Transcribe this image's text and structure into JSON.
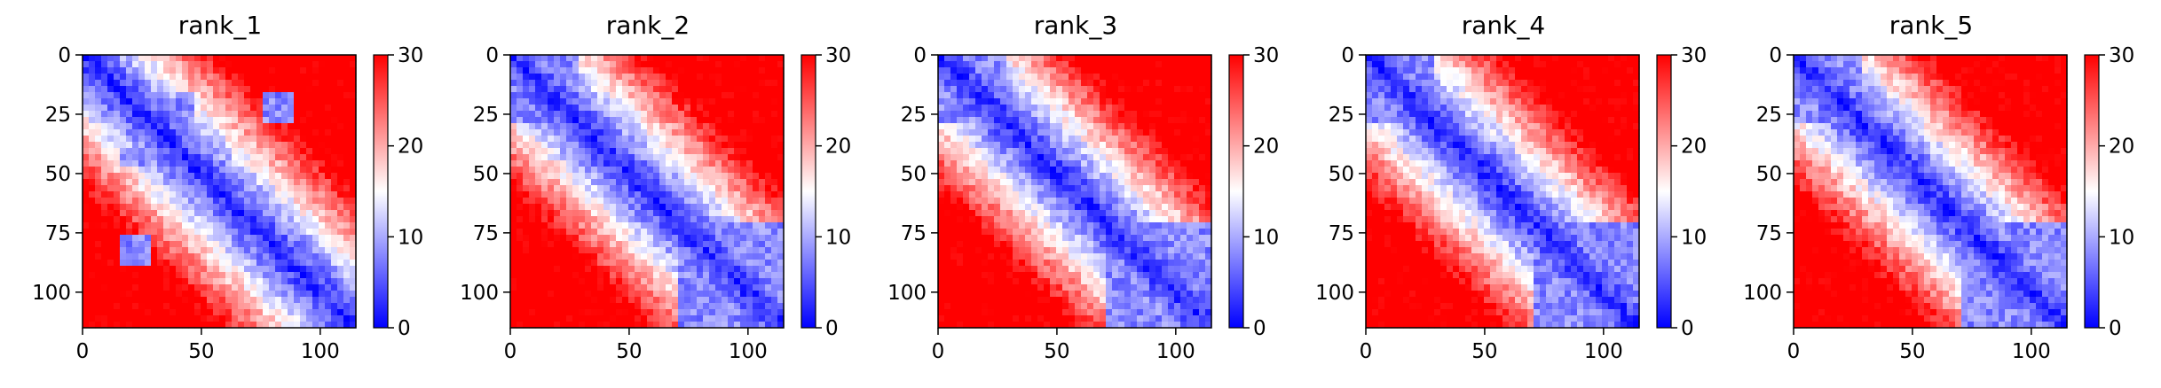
{
  "figure": {
    "colormap": {
      "low": "#0000ff",
      "mid": "#ffffff",
      "high": "#ff0000"
    },
    "colorbar": {
      "range": [
        0,
        30
      ],
      "ticks": [
        "0",
        "10",
        "20",
        "30"
      ]
    }
  },
  "chart_data": [
    {
      "type": "heatmap",
      "title": "rank_1",
      "x_ticks": [
        "0",
        "50",
        "100"
      ],
      "y_ticks": [
        "0",
        "25",
        "50",
        "75",
        "100"
      ],
      "xlim": [
        0,
        115
      ],
      "ylim": [
        115,
        0
      ],
      "value_range": [
        0,
        30
      ],
      "approx_low_regions": [
        [
          15,
          30,
          15,
          30
        ],
        [
          15,
          30,
          80,
          90
        ],
        [
          40,
          48,
          15,
          30
        ],
        [
          75,
          90,
          15,
          30
        ]
      ]
    },
    {
      "type": "heatmap",
      "title": "rank_2",
      "x_ticks": [
        "0",
        "50",
        "100"
      ],
      "y_ticks": [
        "0",
        "25",
        "50",
        "75",
        "100"
      ],
      "xlim": [
        0,
        115
      ],
      "ylim": [
        115,
        0
      ],
      "value_range": [
        0,
        30
      ],
      "approx_low_regions": [
        [
          0,
          30,
          0,
          30
        ],
        [
          70,
          115,
          70,
          115
        ]
      ]
    },
    {
      "type": "heatmap",
      "title": "rank_3",
      "x_ticks": [
        "0",
        "50",
        "100"
      ],
      "y_ticks": [
        "0",
        "25",
        "50",
        "75",
        "100"
      ],
      "xlim": [
        0,
        115
      ],
      "ylim": [
        115,
        0
      ],
      "value_range": [
        0,
        30
      ],
      "approx_low_regions": [
        [
          0,
          30,
          0,
          30
        ],
        [
          70,
          115,
          70,
          115
        ]
      ]
    },
    {
      "type": "heatmap",
      "title": "rank_4",
      "x_ticks": [
        "0",
        "50",
        "100"
      ],
      "y_ticks": [
        "0",
        "25",
        "50",
        "75",
        "100"
      ],
      "xlim": [
        0,
        115
      ],
      "ylim": [
        115,
        0
      ],
      "value_range": [
        0,
        30
      ],
      "approx_low_regions": [
        [
          0,
          30,
          0,
          30
        ],
        [
          70,
          115,
          70,
          115
        ]
      ]
    },
    {
      "type": "heatmap",
      "title": "rank_5",
      "x_ticks": [
        "0",
        "50",
        "100"
      ],
      "y_ticks": [
        "0",
        "25",
        "50",
        "75",
        "100"
      ],
      "xlim": [
        0,
        115
      ],
      "ylim": [
        115,
        0
      ],
      "value_range": [
        0,
        30
      ],
      "approx_low_regions": [
        [
          0,
          30,
          0,
          30
        ],
        [
          70,
          115,
          70,
          115
        ]
      ]
    }
  ]
}
